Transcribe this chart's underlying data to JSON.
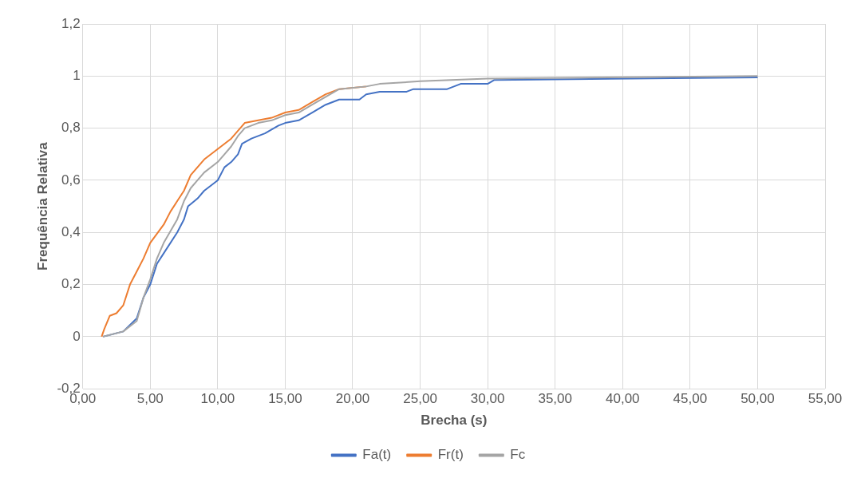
{
  "chart_data": {
    "type": "line",
    "xlabel": "Brecha (s)",
    "ylabel": "Frequência Relativa",
    "xlim": [
      0,
      55
    ],
    "xticks": [
      {
        "value": 0,
        "label": "0,00"
      },
      {
        "value": 5,
        "label": "5,00"
      },
      {
        "value": 10,
        "label": "10,00"
      },
      {
        "value": 15,
        "label": "15,00"
      },
      {
        "value": 20,
        "label": "20,00"
      },
      {
        "value": 25,
        "label": "25,00"
      },
      {
        "value": 30,
        "label": "30,00"
      },
      {
        "value": 35,
        "label": "35,00"
      },
      {
        "value": 40,
        "label": "40,00"
      },
      {
        "value": 45,
        "label": "45,00"
      },
      {
        "value": 50,
        "label": "50,00"
      },
      {
        "value": 55,
        "label": "55,00"
      }
    ],
    "ylim": [
      -0.2,
      1.2
    ],
    "yticks": [
      {
        "value": -0.2,
        "label": "-0,2"
      },
      0,
      {
        "value": 0.2,
        "label": "0,2"
      },
      {
        "value": 0.4,
        "label": "0,4"
      },
      {
        "value": 0.6,
        "label": "0,6"
      },
      {
        "value": 0.8,
        "label": "0,8"
      },
      1,
      {
        "value": 1.2,
        "label": "1,2"
      }
    ],
    "grid": true,
    "legend": "bottom",
    "marker": "none",
    "line_style": "solid",
    "series": [
      {
        "name": "Fa(t)",
        "color": "#4472c4",
        "x": [
          1.5,
          3,
          4,
          4.5,
          5,
          5.5,
          6,
          7,
          7.5,
          7.8,
          8.5,
          9,
          10,
          10.5,
          11,
          11.5,
          11.8,
          12.5,
          13.5,
          14.5,
          15,
          16,
          17,
          18,
          19,
          20.5,
          21,
          22,
          24,
          24.5,
          27,
          28,
          30,
          30.5,
          40.5,
          50
        ],
        "values": [
          0,
          0.02,
          0.07,
          0.15,
          0.2,
          0.28,
          0.32,
          0.4,
          0.45,
          0.5,
          0.53,
          0.56,
          0.6,
          0.65,
          0.67,
          0.7,
          0.74,
          0.76,
          0.78,
          0.81,
          0.82,
          0.83,
          0.86,
          0.89,
          0.91,
          0.91,
          0.93,
          0.94,
          0.94,
          0.95,
          0.95,
          0.97,
          0.97,
          0.985,
          0.99,
          0.995
        ]
      },
      {
        "name": "Fr(t)",
        "color": "#ed7d31",
        "x": [
          1.4,
          1.6,
          2,
          2.5,
          3,
          3.5,
          4,
          4.5,
          5,
          6,
          6.5,
          7,
          7.5,
          8,
          8.5,
          9,
          10,
          10.5,
          11,
          11.5,
          12,
          13,
          14,
          15,
          16,
          17,
          18,
          19,
          21
        ],
        "values": [
          0,
          0.03,
          0.08,
          0.09,
          0.12,
          0.2,
          0.25,
          0.3,
          0.36,
          0.43,
          0.48,
          0.52,
          0.56,
          0.62,
          0.65,
          0.68,
          0.72,
          0.74,
          0.76,
          0.79,
          0.82,
          0.83,
          0.84,
          0.86,
          0.87,
          0.9,
          0.93,
          0.95,
          0.96
        ]
      },
      {
        "name": "Fc",
        "color": "#a5a5a5",
        "x": [
          1.5,
          3,
          4,
          4.5,
          5,
          5.5,
          6,
          7,
          7.5,
          8,
          8.5,
          9,
          10,
          10.5,
          11,
          11.5,
          12,
          13,
          14,
          15,
          16,
          17,
          18,
          19,
          21,
          22,
          25,
          30,
          50
        ],
        "values": [
          0,
          0.02,
          0.06,
          0.15,
          0.22,
          0.3,
          0.36,
          0.45,
          0.52,
          0.57,
          0.6,
          0.63,
          0.67,
          0.7,
          0.73,
          0.77,
          0.8,
          0.82,
          0.83,
          0.85,
          0.86,
          0.89,
          0.92,
          0.95,
          0.96,
          0.97,
          0.98,
          0.99,
          1
        ]
      }
    ]
  }
}
